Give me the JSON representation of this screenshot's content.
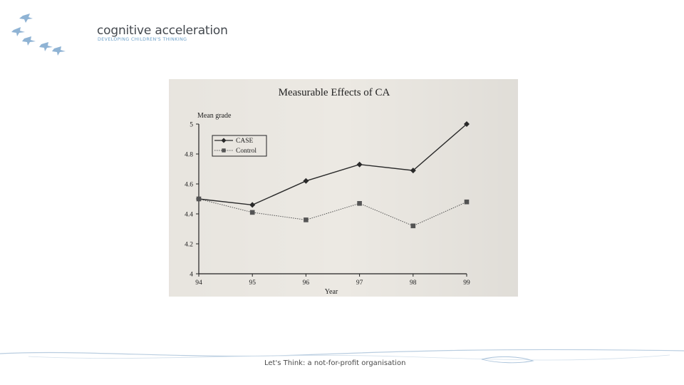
{
  "logo": {
    "title": "cognitive acceleration",
    "tagline": "DEVELOPING CHILDREN'S THINKING",
    "icon": "flying-birds-icon"
  },
  "footer": {
    "text": "Let's Think: a not-for-profit organisation"
  },
  "chart_data": {
    "type": "line",
    "title": "Measurable Effects of CA",
    "ylabel": "Mean grade",
    "xlabel": "Year",
    "x": [
      94,
      95,
      96,
      97,
      98,
      99
    ],
    "ylim": [
      4,
      5
    ],
    "yticks": [
      4,
      4.2,
      4.4,
      4.6,
      4.8,
      5
    ],
    "grid": false,
    "legend_position": "top-left",
    "series": [
      {
        "name": "CASE",
        "marker": "diamond",
        "line": "solid",
        "color": "#2a2a2a",
        "values": [
          4.5,
          4.46,
          4.62,
          4.73,
          4.69,
          5.0
        ]
      },
      {
        "name": "Control",
        "marker": "square",
        "line": "dotted",
        "color": "#555555",
        "values": [
          4.5,
          4.41,
          4.36,
          4.47,
          4.32,
          4.48
        ]
      }
    ]
  }
}
